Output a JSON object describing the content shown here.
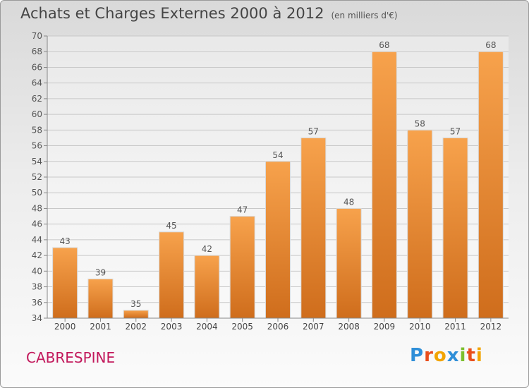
{
  "header": {
    "title": "Achats et Charges Externes 2000 à 2012",
    "unit": "(en milliers d'€)"
  },
  "footer": {
    "town": "CABRESPINE",
    "logo_text": "Proxiti",
    "logo_letters": [
      {
        "ch": "P",
        "color": "#2f8fd8"
      },
      {
        "ch": "r",
        "color": "#e94e1b"
      },
      {
        "ch": "o",
        "color": "#f2a400"
      },
      {
        "ch": "x",
        "color": "#2f8fd8"
      },
      {
        "ch": "i",
        "color": "#7cbf2e"
      },
      {
        "ch": "t",
        "color": "#e94e1b"
      },
      {
        "ch": "i",
        "color": "#f2a400"
      }
    ]
  },
  "chart_data": {
    "type": "bar",
    "title": "Achats et Charges Externes 2000 à 2012",
    "subtitle": "(en milliers d'€)",
    "categories": [
      "2000",
      "2001",
      "2002",
      "2003",
      "2004",
      "2005",
      "2006",
      "2007",
      "2008",
      "2009",
      "2010",
      "2011",
      "2012"
    ],
    "values": [
      43,
      39,
      35,
      45,
      42,
      47,
      54,
      57,
      48,
      68,
      58,
      57,
      68
    ],
    "ylim": [
      34,
      70
    ],
    "yticks": [
      34,
      36,
      38,
      40,
      42,
      44,
      46,
      48,
      50,
      52,
      54,
      56,
      58,
      60,
      62,
      64,
      66,
      68,
      70
    ],
    "grid": true,
    "bar_color": "#f0922f",
    "bar_color_dark": "#c8641a",
    "data_labels": true
  }
}
